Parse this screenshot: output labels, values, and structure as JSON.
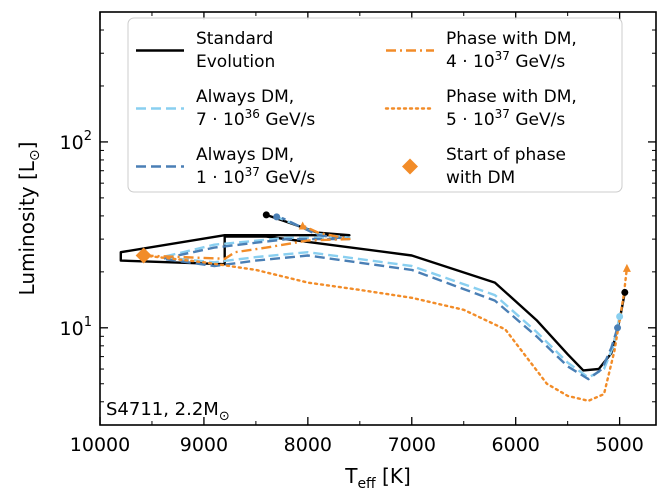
{
  "chart_data": {
    "type": "line",
    "xlabel": "T_eff [K]",
    "ylabel": "Luminosity [L_sun]",
    "xlim": [
      10000,
      4650
    ],
    "ylim": [
      3.0,
      500
    ],
    "yscale": "log",
    "x_ticks": [
      10000,
      9000,
      8000,
      7000,
      6000,
      5000
    ],
    "x_tick_labels": [
      "10000",
      "9000",
      "8000",
      "7000",
      "6000",
      "5000"
    ],
    "y_ticks": [
      10,
      100
    ],
    "y_tick_labels": [
      "10^1",
      "10^2"
    ],
    "annotation": "S4711, 2.2M_sun",
    "series": [
      {
        "name": "Standard Evolution",
        "color": "#000000",
        "style": "solid",
        "points": [
          [
            4950,
            15.5
          ],
          [
            5000,
            11
          ],
          [
            5080,
            7.3
          ],
          [
            5200,
            6.0
          ],
          [
            5350,
            5.9
          ],
          [
            5500,
            7.2
          ],
          [
            5800,
            11
          ],
          [
            6200,
            17.5
          ],
          [
            7000,
            24.5
          ],
          [
            8000,
            29
          ],
          [
            8400,
            31
          ],
          [
            8800,
            31
          ],
          [
            8800,
            22
          ],
          [
            9800,
            23
          ],
          [
            9800,
            25.5
          ],
          [
            8800,
            31.5
          ],
          [
            8000,
            31.5
          ],
          [
            7600,
            31.5
          ],
          [
            7900,
            32.5
          ],
          [
            8400,
            40.5
          ]
        ]
      },
      {
        "name": "Always DM, 7 · 10^36 GeV/s",
        "color": "#89CFF0",
        "style": "dashed",
        "points": [
          [
            5000,
            11.5
          ],
          [
            5060,
            8.0
          ],
          [
            5150,
            6.0
          ],
          [
            5300,
            5.4
          ],
          [
            5500,
            6.5
          ],
          [
            5800,
            9.5
          ],
          [
            6200,
            15
          ],
          [
            7000,
            21.5
          ],
          [
            8000,
            25.5
          ],
          [
            8500,
            24
          ],
          [
            8900,
            22.5
          ],
          [
            9400,
            24
          ],
          [
            8900,
            28
          ],
          [
            8200,
            30.5
          ],
          [
            7600,
            30.5
          ],
          [
            7900,
            32
          ],
          [
            8300,
            39.5
          ]
        ]
      },
      {
        "name": "Always DM, 1 · 10^37 GeV/s",
        "color": "#4A7FB5",
        "style": "dashed",
        "points": [
          [
            5020,
            10.0
          ],
          [
            5080,
            7.8
          ],
          [
            5170,
            6.0
          ],
          [
            5300,
            5.3
          ],
          [
            5500,
            6.2
          ],
          [
            5800,
            9.0
          ],
          [
            6200,
            14
          ],
          [
            7000,
            20.5
          ],
          [
            8000,
            24.5
          ],
          [
            8500,
            23
          ],
          [
            8900,
            21.5
          ],
          [
            9400,
            23.5
          ],
          [
            8900,
            27
          ],
          [
            8200,
            30
          ],
          [
            7600,
            30
          ],
          [
            7900,
            31.5
          ],
          [
            8250,
            39
          ]
        ]
      },
      {
        "name": "Phase with DM, 4 · 10^37 GeV/s",
        "color": "#F28C28",
        "style": "dashdot",
        "points": [
          [
            9580,
            24.5
          ],
          [
            9200,
            24
          ],
          [
            8800,
            23.5
          ],
          [
            8700,
            25.5
          ],
          [
            8400,
            27
          ],
          [
            8000,
            29.5
          ],
          [
            7600,
            30
          ],
          [
            7900,
            32.5
          ],
          [
            8050,
            35.5
          ]
        ]
      },
      {
        "name": "Phase with DM, 5 · 10^37 GeV/s",
        "color": "#F28C28",
        "style": "dotted",
        "points": [
          [
            9580,
            24.5
          ],
          [
            9000,
            22.5
          ],
          [
            8500,
            20.5
          ],
          [
            8000,
            17.5
          ],
          [
            7500,
            16
          ],
          [
            7000,
            14.5
          ],
          [
            6500,
            12.5
          ],
          [
            6100,
            9.8
          ],
          [
            5900,
            7.0
          ],
          [
            5700,
            5.0
          ],
          [
            5500,
            4.3
          ],
          [
            5300,
            4.05
          ],
          [
            5150,
            4.4
          ],
          [
            5050,
            7.5
          ],
          [
            5000,
            11
          ],
          [
            4960,
            15
          ],
          [
            4930,
            21
          ]
        ]
      }
    ],
    "markers": [
      {
        "name": "Start of phase with DM",
        "shape": "diamond",
        "color": "#F28C28",
        "x": 9580,
        "y": 24.5
      },
      {
        "name": "end-standard",
        "shape": "circle",
        "color": "#000000",
        "x": 4950,
        "y": 15.5
      },
      {
        "name": "end-always-dm-7e36",
        "shape": "circle",
        "color": "#89CFF0",
        "x": 5000,
        "y": 11.5
      },
      {
        "name": "end-always-dm-1e37",
        "shape": "circle",
        "color": "#4A7FB5",
        "x": 5020,
        "y": 10.0
      },
      {
        "name": "end-phase-dm-5e37",
        "shape": "triangle",
        "color": "#F28C28",
        "x": 4930,
        "y": 21
      },
      {
        "name": "end-phase-dm-4e37",
        "shape": "triangle",
        "color": "#F28C28",
        "x": 8050,
        "y": 35.5
      },
      {
        "name": "end-standard-upper",
        "shape": "circle",
        "color": "#000000",
        "x": 8400,
        "y": 40.5
      },
      {
        "name": "end-always-dm-upper",
        "shape": "circle",
        "color": "#4A7FB5",
        "x": 8300,
        "y": 39.5
      }
    ],
    "legend": {
      "placement": "top",
      "entries": [
        {
          "label_line1": "Standard",
          "label_line2": "Evolution",
          "color": "#000000",
          "style": "solid"
        },
        {
          "label_line1": "Always DM,",
          "label_line2": "7 · 10",
          "exp": "36",
          "unit": " GeV/s",
          "color": "#89CFF0",
          "style": "dashed"
        },
        {
          "label_line1": "Always DM,",
          "label_line2": "1 · 10",
          "exp": "37",
          "unit": " GeV/s",
          "color": "#4A7FB5",
          "style": "dashed"
        },
        {
          "label_line1": "Phase with DM,",
          "label_line2": "4 · 10",
          "exp": "37",
          "unit": " GeV/s",
          "color": "#F28C28",
          "style": "dashdot"
        },
        {
          "label_line1": "Phase with DM,",
          "label_line2": "5 · 10",
          "exp": "37",
          "unit": " GeV/s",
          "color": "#F28C28",
          "style": "dotted"
        },
        {
          "label_line1": "Start of phase",
          "label_line2": "with DM",
          "color": "#F28C28",
          "style": "diamond"
        }
      ]
    }
  }
}
